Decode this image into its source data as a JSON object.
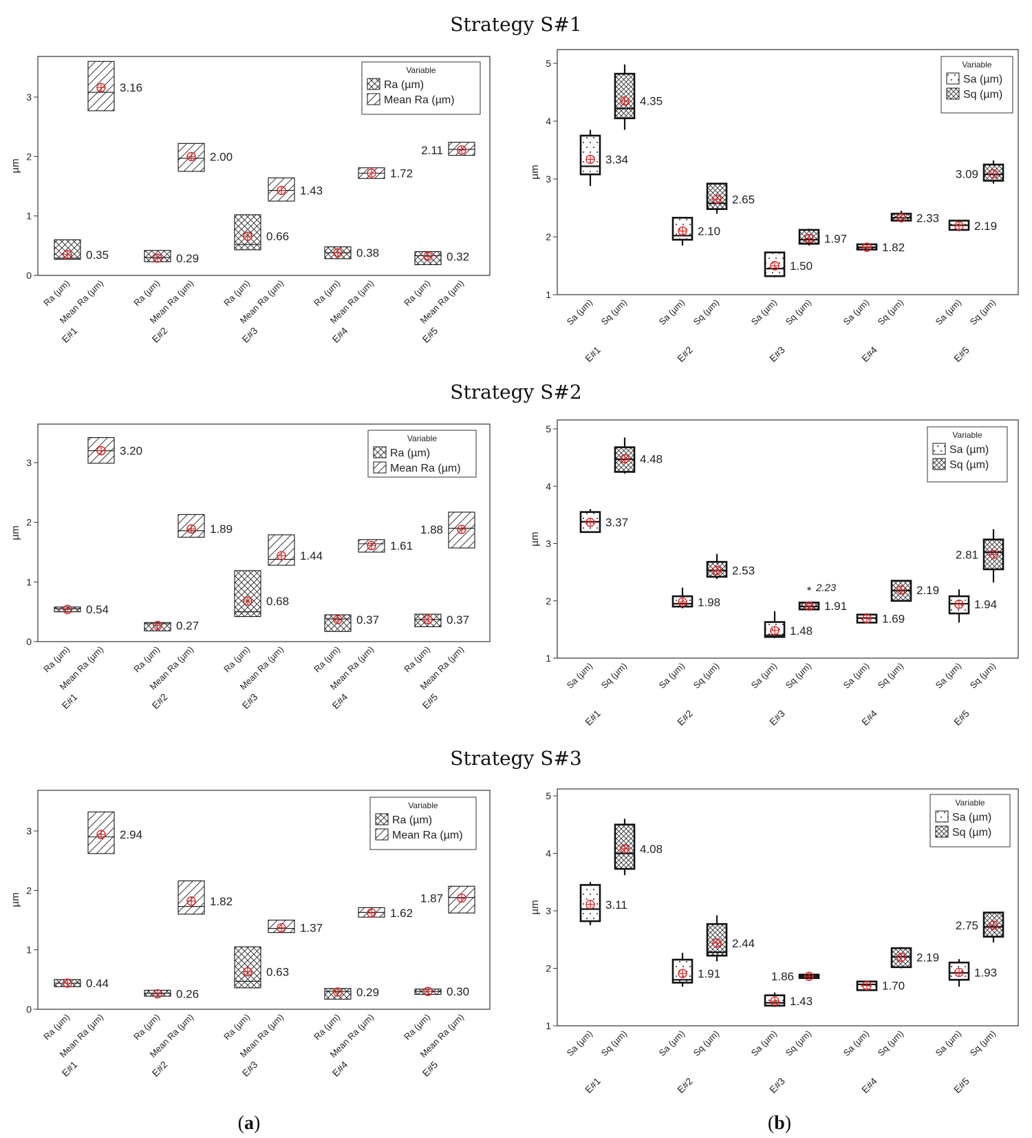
{
  "captions": {
    "a": "a",
    "b": "b"
  },
  "chart_data": [
    {
      "type": "box",
      "strategy_title": "Strategy S#1",
      "panel": "a",
      "ylabel": "µm",
      "ylim": [
        0,
        3.6
      ],
      "yticks": [
        "0",
        "1",
        "2",
        "3"
      ],
      "groups": [
        "E#1",
        "E#2",
        "E#3",
        "E#4",
        "E#5"
      ],
      "categories": [
        "Ra (µm)",
        "Mean Ra (µm)"
      ],
      "legend": {
        "title": "Variable",
        "entries": [
          "Ra (µm)",
          "Mean Ra (µm)"
        ],
        "position": "top-right"
      },
      "boxes": [
        {
          "group": "E#1",
          "var": "Ra",
          "q1": 0.27,
          "median": 0.29,
          "q3": 0.6,
          "mean": 0.35,
          "label": "0.35"
        },
        {
          "group": "E#1",
          "var": "Mean Ra",
          "q1": 2.77,
          "median": 3.08,
          "q3": 3.6,
          "mean": 3.16,
          "label": "3.16"
        },
        {
          "group": "E#2",
          "var": "Ra",
          "q1": 0.23,
          "median": 0.3,
          "q3": 0.42,
          "mean": 0.29,
          "label": "0.29"
        },
        {
          "group": "E#2",
          "var": "Mean Ra",
          "q1": 1.75,
          "median": 1.97,
          "q3": 2.22,
          "mean": 2.0,
          "label": "2.00"
        },
        {
          "group": "E#3",
          "var": "Ra",
          "q1": 0.43,
          "median": 0.52,
          "q3": 1.02,
          "mean": 0.66,
          "label": "0.66"
        },
        {
          "group": "E#3",
          "var": "Mean Ra",
          "q1": 1.25,
          "median": 1.43,
          "q3": 1.64,
          "mean": 1.43,
          "label": "1.43"
        },
        {
          "group": "E#4",
          "var": "Ra",
          "q1": 0.28,
          "median": 0.38,
          "q3": 0.48,
          "mean": 0.38,
          "label": "0.38"
        },
        {
          "group": "E#4",
          "var": "Mean Ra",
          "q1": 1.63,
          "median": 1.72,
          "q3": 1.81,
          "mean": 1.72,
          "label": "1.72"
        },
        {
          "group": "E#5",
          "var": "Ra",
          "q1": 0.18,
          "median": 0.33,
          "q3": 0.4,
          "mean": 0.32,
          "label": "0.32"
        },
        {
          "group": "E#5",
          "var": "Mean Ra",
          "q1": 2.02,
          "median": 2.12,
          "q3": 2.24,
          "mean": 2.11,
          "label": "2.11",
          "label_side": "left"
        }
      ]
    },
    {
      "type": "box",
      "strategy_title": "Strategy S#1",
      "panel": "b",
      "ylabel": "µm",
      "ylim": [
        1,
        5
      ],
      "yticks": [
        "1",
        "2",
        "3",
        "4",
        "5"
      ],
      "groups": [
        "E#1",
        "E#2",
        "E#3",
        "E#4",
        "E#5"
      ],
      "categories": [
        "Sa (µm)",
        "Sq (µm)"
      ],
      "legend": {
        "title": "Variable",
        "entries": [
          "Sa (µm)",
          "Sq (µm)"
        ],
        "position": "top-right"
      },
      "boxes": [
        {
          "group": "E#1",
          "var": "Sa",
          "min": 2.88,
          "q1": 3.08,
          "median": 3.22,
          "q3": 3.75,
          "max": 3.85,
          "mean": 3.34,
          "label": "3.34"
        },
        {
          "group": "E#1",
          "var": "Sq",
          "min": 3.85,
          "q1": 4.05,
          "median": 4.22,
          "q3": 4.82,
          "max": 4.98,
          "mean": 4.35,
          "label": "4.35"
        },
        {
          "group": "E#2",
          "var": "Sa",
          "min": 1.85,
          "q1": 1.95,
          "median": 2.02,
          "q3": 2.33,
          "max": 2.33,
          "mean": 2.1,
          "label": "2.10"
        },
        {
          "group": "E#2",
          "var": "Sq",
          "min": 2.4,
          "q1": 2.48,
          "median": 2.58,
          "q3": 2.92,
          "max": 2.92,
          "mean": 2.65,
          "label": "2.65"
        },
        {
          "group": "E#3",
          "var": "Sa",
          "min": 1.3,
          "q1": 1.32,
          "median": 1.45,
          "q3": 1.73,
          "max": 1.73,
          "mean": 1.5,
          "label": "1.50"
        },
        {
          "group": "E#3",
          "var": "Sq",
          "min": 1.85,
          "q1": 1.88,
          "median": 1.95,
          "q3": 2.12,
          "max": 2.14,
          "mean": 1.97,
          "label": "1.97"
        },
        {
          "group": "E#4",
          "var": "Sa",
          "min": 1.78,
          "q1": 1.78,
          "median": 1.82,
          "q3": 1.87,
          "max": 1.88,
          "mean": 1.82,
          "label": "1.82"
        },
        {
          "group": "E#4",
          "var": "Sq",
          "min": 2.25,
          "q1": 2.28,
          "median": 2.33,
          "q3": 2.4,
          "max": 2.45,
          "mean": 2.33,
          "label": "2.33"
        },
        {
          "group": "E#5",
          "var": "Sa",
          "min": 2.1,
          "q1": 2.12,
          "median": 2.2,
          "q3": 2.28,
          "max": 2.28,
          "mean": 2.19,
          "label": "2.19"
        },
        {
          "group": "E#5",
          "var": "Sq",
          "min": 2.92,
          "q1": 2.97,
          "median": 3.08,
          "q3": 3.25,
          "max": 3.32,
          "mean": 3.09,
          "label": "3.09",
          "label_side": "left"
        }
      ]
    },
    {
      "type": "box",
      "strategy_title": "Strategy S#2",
      "panel": "a",
      "ylabel": "µm",
      "ylim": [
        0,
        3.6
      ],
      "yticks": [
        "0",
        "1",
        "2",
        "3"
      ],
      "groups": [
        "E#1",
        "E#2",
        "E#3",
        "E#4",
        "E#5"
      ],
      "categories": [
        "Ra (µm)",
        "Mean Ra (µm)"
      ],
      "legend": {
        "title": "Variable",
        "entries": [
          "Ra  (µm)",
          "Mean Ra (µm)"
        ],
        "position": "top-right"
      },
      "boxes": [
        {
          "group": "E#1",
          "var": "Ra",
          "q1": 0.5,
          "median": 0.55,
          "q3": 0.58,
          "mean": 0.54,
          "label": "0.54"
        },
        {
          "group": "E#1",
          "var": "Mean Ra",
          "q1": 2.99,
          "median": 3.2,
          "q3": 3.42,
          "mean": 3.2,
          "label": "3.20"
        },
        {
          "group": "E#2",
          "var": "Ra",
          "q1": 0.18,
          "median": 0.3,
          "q3": 0.32,
          "mean": 0.27,
          "label": "0.27"
        },
        {
          "group": "E#2",
          "var": "Mean Ra",
          "q1": 1.75,
          "median": 1.86,
          "q3": 2.13,
          "mean": 1.89,
          "label": "1.89"
        },
        {
          "group": "E#3",
          "var": "Ra",
          "q1": 0.42,
          "median": 0.5,
          "q3": 1.19,
          "mean": 0.68,
          "label": "0.68"
        },
        {
          "group": "E#3",
          "var": "Mean Ra",
          "q1": 1.28,
          "median": 1.38,
          "q3": 1.79,
          "mean": 1.44,
          "label": "1.44"
        },
        {
          "group": "E#4",
          "var": "Ra",
          "q1": 0.17,
          "median": 0.38,
          "q3": 0.45,
          "mean": 0.37,
          "label": "0.37"
        },
        {
          "group": "E#4",
          "var": "Mean Ra",
          "q1": 1.5,
          "median": 1.64,
          "q3": 1.71,
          "mean": 1.61,
          "label": "1.61"
        },
        {
          "group": "E#5",
          "var": "Ra",
          "q1": 0.25,
          "median": 0.37,
          "q3": 0.46,
          "mean": 0.37,
          "label": "0.37"
        },
        {
          "group": "E#5",
          "var": "Mean Ra",
          "q1": 1.57,
          "median": 1.9,
          "q3": 2.17,
          "mean": 1.88,
          "label": "1.88",
          "label_side": "left"
        }
      ]
    },
    {
      "type": "box",
      "strategy_title": "Strategy S#2",
      "panel": "b",
      "ylabel": "µm",
      "ylim": [
        1,
        5
      ],
      "yticks": [
        "1",
        "2",
        "3",
        "4",
        "5"
      ],
      "groups": [
        "E#1",
        "E#2",
        "E#3",
        "E#4",
        "E#5"
      ],
      "categories": [
        "Sa  (µm)",
        "Sq (µm)"
      ],
      "legend": {
        "title": "Variable",
        "entries": [
          "Sa  (µm)",
          "Sq  (µm)"
        ],
        "position": "top-right"
      },
      "outlier": {
        "group": "E#3",
        "var": "Sq",
        "value": 2.23,
        "label": "2.23"
      },
      "boxes": [
        {
          "group": "E#1",
          "var": "Sa",
          "min": 3.2,
          "q1": 3.2,
          "median": 3.38,
          "q3": 3.55,
          "max": 3.6,
          "mean": 3.37,
          "label": "3.37"
        },
        {
          "group": "E#1",
          "var": "Sq",
          "min": 4.22,
          "q1": 4.25,
          "median": 4.47,
          "q3": 4.68,
          "max": 4.85,
          "mean": 4.48,
          "label": "4.48"
        },
        {
          "group": "E#2",
          "var": "Sa",
          "min": 1.87,
          "q1": 1.9,
          "median": 1.95,
          "q3": 2.08,
          "max": 2.23,
          "mean": 1.98,
          "label": "1.98"
        },
        {
          "group": "E#2",
          "var": "Sq",
          "min": 2.38,
          "q1": 2.42,
          "median": 2.53,
          "q3": 2.68,
          "max": 2.82,
          "mean": 2.53,
          "label": "2.53"
        },
        {
          "group": "E#3",
          "var": "Sa",
          "min": 1.35,
          "q1": 1.37,
          "median": 1.4,
          "q3": 1.63,
          "max": 1.82,
          "mean": 1.48,
          "label": "1.48"
        },
        {
          "group": "E#3",
          "var": "Sq",
          "min": 1.83,
          "q1": 1.85,
          "median": 1.9,
          "q3": 1.97,
          "max": 1.97,
          "mean": 1.91,
          "label": "1.91"
        },
        {
          "group": "E#4",
          "var": "Sa",
          "min": 1.62,
          "q1": 1.62,
          "median": 1.7,
          "q3": 1.76,
          "max": 1.78,
          "mean": 1.69,
          "label": "1.69"
        },
        {
          "group": "E#4",
          "var": "Sq",
          "min": 2.0,
          "q1": 2.0,
          "median": 2.18,
          "q3": 2.35,
          "max": 2.35,
          "mean": 2.19,
          "label": "2.19"
        },
        {
          "group": "E#5",
          "var": "Sa",
          "min": 1.62,
          "q1": 1.78,
          "median": 1.95,
          "q3": 2.08,
          "max": 2.2,
          "mean": 1.94,
          "label": "1.94"
        },
        {
          "group": "E#5",
          "var": "Sq",
          "min": 2.32,
          "q1": 2.55,
          "median": 2.85,
          "q3": 3.07,
          "max": 3.25,
          "mean": 2.81,
          "label": "2.81",
          "label_side": "left"
        }
      ]
    },
    {
      "type": "box",
      "strategy_title": "Strategy S#3",
      "panel": "a",
      "ylabel": "µm",
      "ylim": [
        0,
        3.6
      ],
      "yticks": [
        "0",
        "1",
        "2",
        "3"
      ],
      "groups": [
        "E#1",
        "E#2",
        "E#3",
        "E#4",
        "E#5"
      ],
      "categories": [
        "Ra (µm)",
        "Mean Ra (µm)"
      ],
      "legend": {
        "title": "Variable",
        "entries": [
          "Ra (µm)",
          "Mean Ra (µm)"
        ],
        "position": "top-right"
      },
      "boxes": [
        {
          "group": "E#1",
          "var": "Ra",
          "q1": 0.38,
          "median": 0.44,
          "q3": 0.5,
          "mean": 0.44,
          "label": "0.44"
        },
        {
          "group": "E#1",
          "var": "Mean Ra",
          "q1": 2.62,
          "median": 2.9,
          "q3": 3.32,
          "mean": 2.94,
          "label": "2.94"
        },
        {
          "group": "E#2",
          "var": "Ra",
          "q1": 0.22,
          "median": 0.27,
          "q3": 0.32,
          "mean": 0.26,
          "label": "0.26"
        },
        {
          "group": "E#2",
          "var": "Mean Ra",
          "q1": 1.6,
          "median": 1.73,
          "q3": 2.16,
          "mean": 1.82,
          "label": "1.82"
        },
        {
          "group": "E#3",
          "var": "Ra",
          "q1": 0.36,
          "median": 0.47,
          "q3": 1.05,
          "mean": 0.63,
          "label": "0.63"
        },
        {
          "group": "E#3",
          "var": "Mean Ra",
          "q1": 1.29,
          "median": 1.36,
          "q3": 1.5,
          "mean": 1.37,
          "label": "1.37"
        },
        {
          "group": "E#4",
          "var": "Ra",
          "q1": 0.17,
          "median": 0.3,
          "q3": 0.35,
          "mean": 0.29,
          "label": "0.29"
        },
        {
          "group": "E#4",
          "var": "Mean Ra",
          "q1": 1.55,
          "median": 1.63,
          "q3": 1.71,
          "mean": 1.62,
          "label": "1.62"
        },
        {
          "group": "E#5",
          "var": "Ra",
          "q1": 0.25,
          "median": 0.3,
          "q3": 0.34,
          "mean": 0.3,
          "label": "0.30"
        },
        {
          "group": "E#5",
          "var": "Mean Ra",
          "q1": 1.62,
          "median": 1.88,
          "q3": 2.07,
          "mean": 1.87,
          "label": "1.87",
          "label_side": "left"
        }
      ]
    },
    {
      "type": "box",
      "strategy_title": "Strategy S#3",
      "panel": "b",
      "ylabel": "µm",
      "ylim": [
        1,
        5
      ],
      "yticks": [
        "1",
        "2",
        "3",
        "4",
        "5"
      ],
      "groups": [
        "E#1",
        "E#2",
        "E#3",
        "E#4",
        "E#5"
      ],
      "categories": [
        "Sa (µm)",
        "Sq (µm)"
      ],
      "legend": {
        "title": "Variable",
        "entries": [
          "Sa (µm)",
          "Sq  (µm)"
        ],
        "position": "top-right"
      },
      "boxes": [
        {
          "group": "E#1",
          "var": "Sa",
          "min": 2.75,
          "q1": 2.82,
          "median": 3.03,
          "q3": 3.45,
          "max": 3.5,
          "mean": 3.11,
          "label": "3.11"
        },
        {
          "group": "E#1",
          "var": "Sq",
          "min": 3.62,
          "q1": 3.73,
          "median": 4.0,
          "q3": 4.5,
          "max": 4.6,
          "mean": 4.08,
          "label": "4.08"
        },
        {
          "group": "E#2",
          "var": "Sa",
          "min": 1.68,
          "q1": 1.75,
          "median": 1.8,
          "q3": 2.15,
          "max": 2.27,
          "mean": 1.91,
          "label": "1.91"
        },
        {
          "group": "E#2",
          "var": "Sq",
          "min": 2.12,
          "q1": 2.22,
          "median": 2.28,
          "q3": 2.77,
          "max": 2.92,
          "mean": 2.44,
          "label": "2.44"
        },
        {
          "group": "E#3",
          "var": "Sa",
          "min": 1.33,
          "q1": 1.35,
          "median": 1.4,
          "q3": 1.53,
          "max": 1.58,
          "mean": 1.43,
          "label": "1.43"
        },
        {
          "group": "E#3",
          "var": "Sq",
          "min": 1.83,
          "q1": 1.83,
          "median": 1.86,
          "q3": 1.89,
          "max": 1.89,
          "mean": 1.86,
          "label": "1.86",
          "label_side": "left"
        },
        {
          "group": "E#4",
          "var": "Sa",
          "min": 1.62,
          "q1": 1.62,
          "median": 1.72,
          "q3": 1.77,
          "max": 1.77,
          "mean": 1.7,
          "label": "1.70"
        },
        {
          "group": "E#4",
          "var": "Sq",
          "min": 2.0,
          "q1": 2.02,
          "median": 2.2,
          "q3": 2.35,
          "max": 2.37,
          "mean": 2.19,
          "label": "2.19"
        },
        {
          "group": "E#5",
          "var": "Sa",
          "min": 1.68,
          "q1": 1.8,
          "median": 1.92,
          "q3": 2.1,
          "max": 2.16,
          "mean": 1.93,
          "label": "1.93"
        },
        {
          "group": "E#5",
          "var": "Sq",
          "min": 2.45,
          "q1": 2.55,
          "median": 2.72,
          "q3": 2.97,
          "max": 2.97,
          "mean": 2.75,
          "label": "2.75",
          "label_side": "left"
        }
      ]
    }
  ]
}
